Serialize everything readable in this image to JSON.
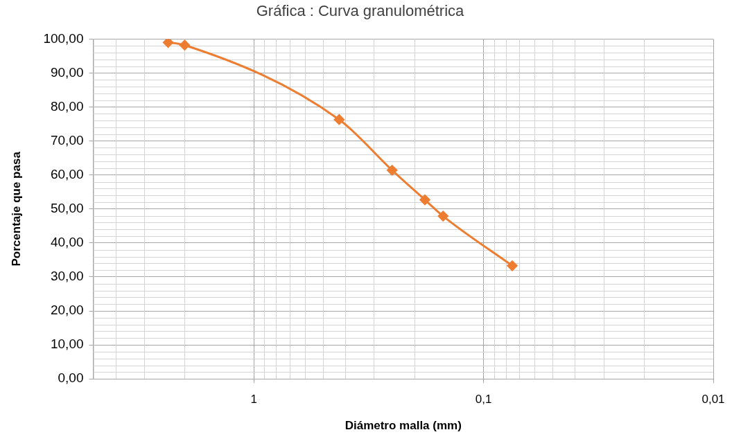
{
  "chart_data": {
    "type": "line",
    "title": "Gráfica : Curva granulométrica",
    "xlabel": "Diámetro malla (mm)",
    "ylabel": "Porcentaje que pasa",
    "log": "x",
    "xlim": [
      5,
      0.01
    ],
    "xticks": [
      {
        "value": 1,
        "label": "1"
      },
      {
        "value": 0.1,
        "label": "0,1"
      },
      {
        "value": 0.01,
        "label": "0,01"
      }
    ],
    "ylim": [
      0,
      100
    ],
    "yticks": [
      {
        "value": 0,
        "label": "0,00"
      },
      {
        "value": 10,
        "label": "10,00"
      },
      {
        "value": 20,
        "label": "20,00"
      },
      {
        "value": 30,
        "label": "30,00"
      },
      {
        "value": 40,
        "label": "40,00"
      },
      {
        "value": 50,
        "label": "50,00"
      },
      {
        "value": 60,
        "label": "60,00"
      },
      {
        "value": 70,
        "label": "70,00"
      },
      {
        "value": 80,
        "label": "80,00"
      },
      {
        "value": 90,
        "label": "90,00"
      },
      {
        "value": 100,
        "label": "100,00"
      }
    ],
    "x": [
      2.36,
      2.0,
      0.425,
      0.25,
      0.18,
      0.15,
      0.075
    ],
    "series": [
      {
        "color": "#ed7d31",
        "values": [
          99.0,
          98.2,
          76.3,
          61.4,
          52.7,
          47.9,
          33.3
        ]
      }
    ],
    "grid": true,
    "legend": false,
    "marker": "diamond",
    "line_style": "solid"
  }
}
